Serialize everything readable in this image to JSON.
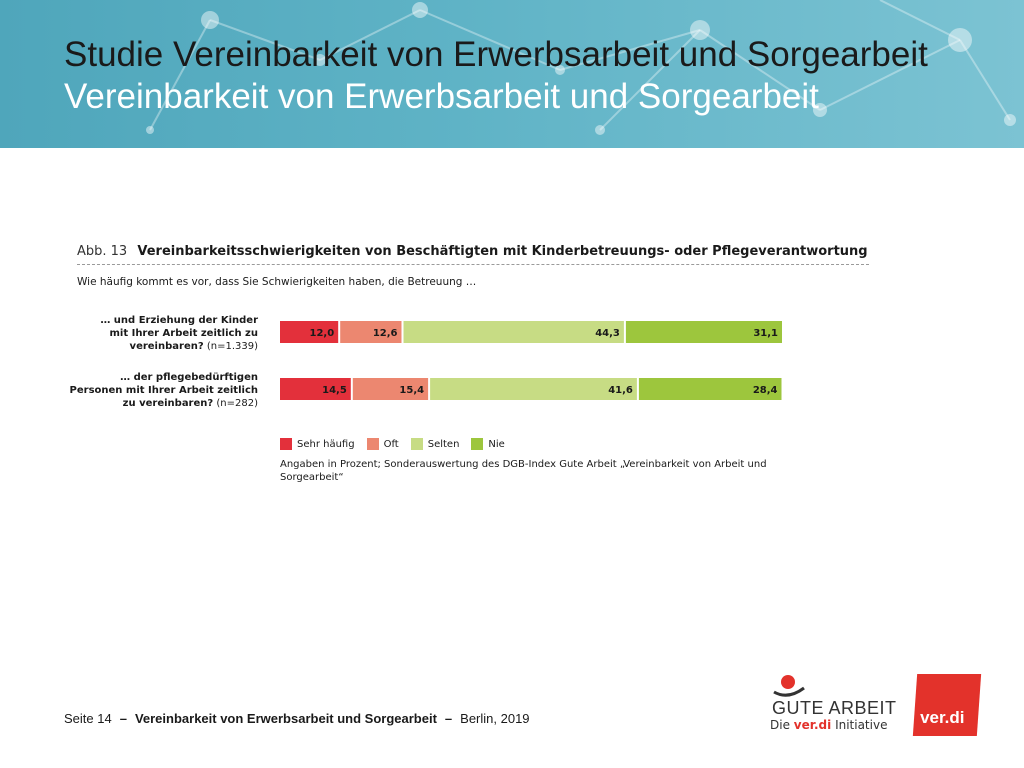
{
  "header": {
    "title": "Studie Vereinbarkeit von Erwerbsarbeit und Sorgearbeit",
    "subtitle": "Vereinbarkeit von Erwerbsarbeit und Sorgearbeit"
  },
  "figure": {
    "number": "Abb. 13",
    "title": "Vereinbarkeitsschwierigkeiten von Beschäftigten mit Kinderbetreuungs- oder Pflegeverantwortung",
    "question": "Wie häufig kommt es vor, dass Sie Schwierigkeiten haben, die Betreuung …",
    "note_line1": "Angaben in Prozent; Sonderauswertung des DGB-Index Gute Arbeit „Vereinbarkeit von Arbeit und",
    "note_line2": "Sorgearbeit“"
  },
  "rows": [
    {
      "line1": "… und Erziehung der Kinder",
      "line2": "mit Ihrer Arbeit zeitlich zu",
      "line3": "vereinbaren?",
      "n": "(n=1.339)"
    },
    {
      "line1": "… der pflegebedürftigen",
      "line2": "Personen mit Ihrer Arbeit zeitlich",
      "line3": "zu vereinbaren?",
      "n": "(n=282)"
    }
  ],
  "chart_data": {
    "type": "bar",
    "orientation": "horizontal",
    "stacked": true,
    "categories": [
      "… und Erziehung der Kinder mit Ihrer Arbeit zeitlich zu vereinbaren? (n=1.339)",
      "… der pflegebedürftigen Personen mit Ihrer Arbeit zeitlich zu vereinbaren? (n=282)"
    ],
    "series": [
      {
        "name": "Sehr häufig",
        "color": "#e3303b",
        "values": [
          12.0,
          14.5
        ],
        "labels": [
          "12,0",
          "14,5"
        ]
      },
      {
        "name": "Oft",
        "color": "#ec8770",
        "values": [
          12.6,
          15.4
        ],
        "labels": [
          "12,6",
          "15,4"
        ]
      },
      {
        "name": "Selten",
        "color": "#c7dc84",
        "values": [
          44.3,
          41.6
        ],
        "labels": [
          "44,3",
          "41,6"
        ]
      },
      {
        "name": "Nie",
        "color": "#9dc63d",
        "values": [
          31.1,
          28.4
        ],
        "labels": [
          "31,1",
          "28,4"
        ]
      }
    ],
    "xlim": [
      0,
      100
    ],
    "legend_position": "bottom"
  },
  "footer": {
    "page": "Seite 14",
    "dash": "–",
    "title": "Vereinbarkeit von Erwerbsarbeit und Sorgearbeit",
    "place_year": "Berlin, 2019"
  },
  "logos": {
    "gute_arbeit_word": "GUTE ARBEIT",
    "gute_arbeit_tag_pre": "Die",
    "gute_arbeit_tag_brand": "ver.di",
    "gute_arbeit_tag_post": "Initiative",
    "verdi": "ver.di"
  }
}
